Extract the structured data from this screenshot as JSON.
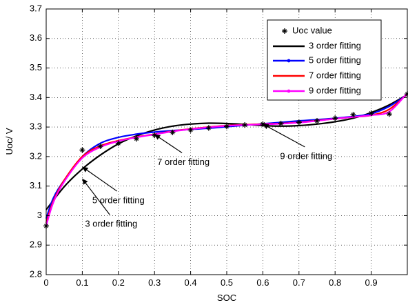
{
  "chart_data": {
    "type": "line",
    "xlabel": "SOC",
    "ylabel": "Uoc/  V",
    "xlim": [
      0,
      1
    ],
    "ylim": [
      2.8,
      3.7
    ],
    "xticks": [
      "0",
      "0.1",
      "0.2",
      "0.3",
      "0.4",
      "0.5",
      "0.6",
      "0.7",
      "0.8",
      "0.9"
    ],
    "yticks": [
      "2.8",
      "2.9",
      "3",
      "3.1",
      "3.2",
      "3.3",
      "3.4",
      "3.5",
      "3.6",
      "3.7"
    ],
    "grid": true,
    "legend_position": "top-right",
    "measured": {
      "name": "Uoc value",
      "color": "#000000",
      "x": [
        0,
        0.1,
        0.15,
        0.2,
        0.25,
        0.3,
        0.35,
        0.4,
        0.45,
        0.5,
        0.55,
        0.6,
        0.65,
        0.7,
        0.75,
        0.8,
        0.85,
        0.9,
        0.95,
        1.0
      ],
      "y": [
        2.965,
        3.222,
        3.235,
        3.245,
        3.26,
        3.272,
        3.282,
        3.29,
        3.297,
        3.302,
        3.307,
        3.31,
        3.312,
        3.316,
        3.321,
        3.33,
        3.342,
        3.347,
        3.344,
        3.412
      ]
    },
    "series": [
      {
        "name": "3 order fitting",
        "color": "#000000",
        "marker": false,
        "x": [
          0,
          0.05,
          0.1,
          0.15,
          0.2,
          0.25,
          0.3,
          0.35,
          0.4,
          0.45,
          0.5,
          0.55,
          0.6,
          0.65,
          0.7,
          0.75,
          0.8,
          0.85,
          0.9,
          0.95,
          1.0
        ],
        "y": [
          3.02,
          3.098,
          3.158,
          3.205,
          3.243,
          3.27,
          3.29,
          3.303,
          3.31,
          3.313,
          3.312,
          3.309,
          3.305,
          3.303,
          3.305,
          3.31,
          3.318,
          3.33,
          3.349,
          3.375,
          3.41
        ]
      },
      {
        "name": "5 order fitting",
        "color": "#0000ff",
        "marker": true,
        "x": [
          0,
          0.02,
          0.05,
          0.1,
          0.15,
          0.2,
          0.25,
          0.3,
          0.35,
          0.4,
          0.45,
          0.5,
          0.55,
          0.6,
          0.65,
          0.7,
          0.75,
          0.8,
          0.85,
          0.9,
          0.95,
          1.0
        ],
        "y": [
          2.99,
          3.06,
          3.12,
          3.2,
          3.245,
          3.265,
          3.276,
          3.283,
          3.288,
          3.292,
          3.296,
          3.301,
          3.306,
          3.311,
          3.316,
          3.321,
          3.325,
          3.33,
          3.336,
          3.345,
          3.37,
          3.41
        ]
      },
      {
        "name": "7 order fitting",
        "color": "#ff0000",
        "marker": false,
        "x": [
          0,
          0.02,
          0.05,
          0.1,
          0.15,
          0.2,
          0.25,
          0.3,
          0.35,
          0.4,
          0.45,
          0.5,
          0.55,
          0.6,
          0.65,
          0.7,
          0.75,
          0.8,
          0.85,
          0.9,
          0.95,
          1.0
        ],
        "y": [
          2.975,
          3.05,
          3.12,
          3.2,
          3.236,
          3.254,
          3.266,
          3.276,
          3.286,
          3.294,
          3.3,
          3.305,
          3.308,
          3.31,
          3.312,
          3.316,
          3.322,
          3.328,
          3.334,
          3.34,
          3.36,
          3.412
        ]
      },
      {
        "name": "9 order fitting",
        "color": "#ff00ff",
        "marker": true,
        "x": [
          0,
          0.02,
          0.05,
          0.1,
          0.15,
          0.2,
          0.25,
          0.3,
          0.35,
          0.4,
          0.45,
          0.5,
          0.55,
          0.6,
          0.65,
          0.7,
          0.75,
          0.8,
          0.85,
          0.9,
          0.95,
          1.0
        ],
        "y": [
          2.965,
          3.045,
          3.115,
          3.195,
          3.232,
          3.252,
          3.265,
          3.275,
          3.285,
          3.293,
          3.299,
          3.304,
          3.307,
          3.309,
          3.311,
          3.315,
          3.321,
          3.328,
          3.334,
          3.34,
          3.352,
          3.415
        ]
      }
    ],
    "annotations": [
      {
        "text": "7 order fitting",
        "arrow_to": [
          0.3,
          3.275
        ],
        "label_at": [
          0.38,
          3.18
        ]
      },
      {
        "text": "9 order fitting",
        "arrow_to": [
          0.6,
          3.31
        ],
        "label_at": [
          0.72,
          3.2
        ]
      },
      {
        "text": "5 order fitting",
        "arrow_to": [
          0.1,
          3.165
        ],
        "label_at": [
          0.2,
          3.05
        ]
      },
      {
        "text": "3 order fitting",
        "arrow_to": [
          0.1,
          3.125
        ],
        "label_at": [
          0.18,
          2.97
        ]
      }
    ]
  }
}
